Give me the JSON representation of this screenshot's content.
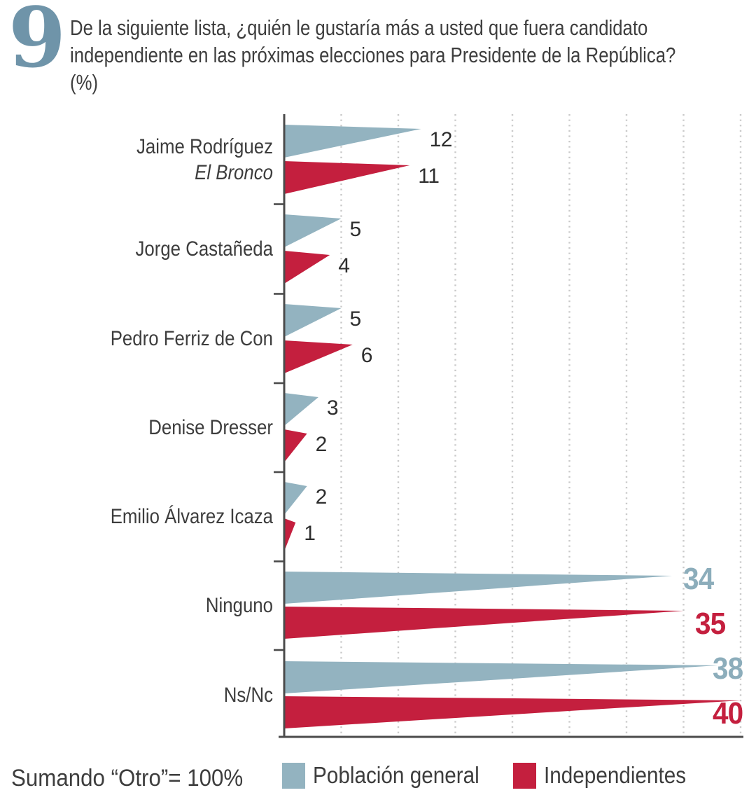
{
  "header": {
    "number": "9",
    "title_line1": "De la siguiente lista, ¿quién le gustaría más a usted que fuera candidato",
    "title_line2": "independiente en las próximas elecciones para Presidente de la República?",
    "unit_note": "(%)"
  },
  "footer": {
    "note": "Sumando “Otro”= 100%"
  },
  "legend": [
    {
      "label": "Población general",
      "color": "#93b3c0"
    },
    {
      "label": "Independientes",
      "color": "#c41f3e"
    }
  ],
  "colors": {
    "general_bar": "#93b3c0",
    "independientes_bar": "#c41f3e",
    "general_big_label": "#8cadbb",
    "independientes_big_label": "#c41f3e",
    "small_value_label": "#2e2e2e",
    "axis": "#4b4b4b",
    "gridline": "#c9c9c9",
    "question_number": "#6f94a9",
    "text": "#3d3d3d"
  },
  "chart_data": {
    "type": "bar",
    "variant": "horizontal-wedge-triangles",
    "title": "De la siguiente lista, ¿quién le gustaría más a usted que fuera candidato independiente en las próximas elecciones para Presidente de la República?",
    "unit": "%",
    "xlabel": "",
    "ylabel": "",
    "xlim": [
      0,
      40
    ],
    "gridline_step": 5,
    "grid": "dotted-vertical",
    "legend_position": "bottom",
    "footnote": "Sumando “Otro”= 100%",
    "categories": [
      "Jaime Rodríguez El Bronco",
      "Jorge Castañeda",
      "Pedro Ferriz de Con",
      "Denise Dresser",
      "Emilio Álvarez Icaza",
      "Ninguno",
      "Ns/Nc"
    ],
    "series": [
      {
        "name": "Población general",
        "color": "#93b3c0",
        "values": [
          12,
          5,
          5,
          3,
          2,
          34,
          38
        ]
      },
      {
        "name": "Independientes",
        "color": "#c41f3e",
        "values": [
          11,
          4,
          6,
          2,
          1,
          35,
          40
        ]
      }
    ],
    "rows": [
      {
        "label_lines": [
          {
            "text": "Jaime Rodríguez"
          },
          {
            "text": "El Bronco",
            "italic": true
          }
        ],
        "big": false
      },
      {
        "label_lines": [
          {
            "text": "Jorge Castañeda"
          }
        ],
        "big": false
      },
      {
        "label_lines": [
          {
            "text": "Pedro Ferriz de Con"
          }
        ],
        "big": false
      },
      {
        "label_lines": [
          {
            "text": "Denise Dresser"
          }
        ],
        "big": false
      },
      {
        "label_lines": [
          {
            "text": "Emilio Álvarez Icaza"
          }
        ],
        "big": false
      },
      {
        "label_lines": [
          {
            "text": "Ninguno"
          }
        ],
        "big": true
      },
      {
        "label_lines": [
          {
            "text": "Ns/Nc"
          }
        ],
        "big": true
      }
    ]
  }
}
